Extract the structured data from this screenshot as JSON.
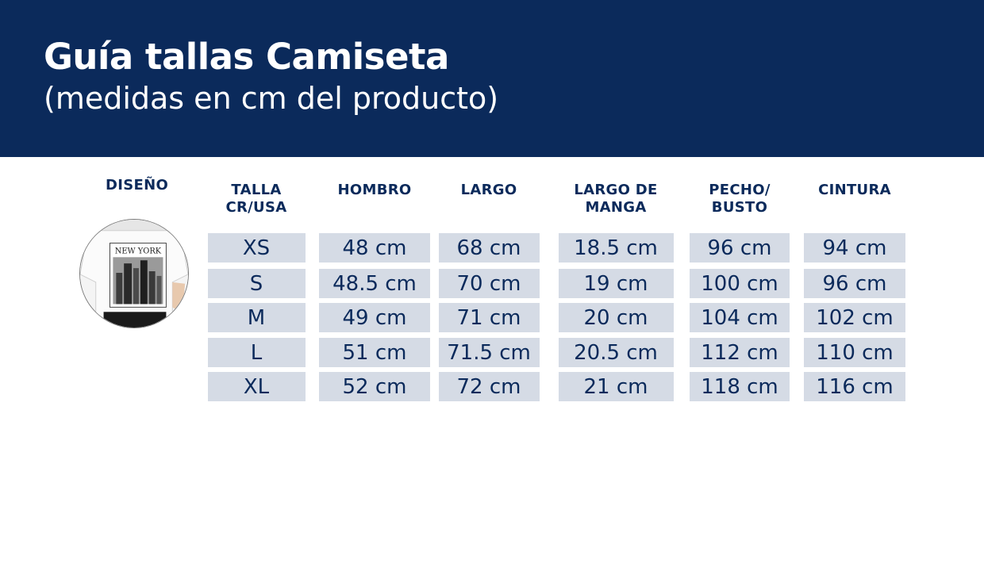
{
  "header": {
    "title": "Guía tallas Camiseta",
    "subtitle": "(medidas en cm del producto)"
  },
  "design": {
    "label": "DISEÑO",
    "shirt_print": "NEW YORK"
  },
  "columns": [
    [
      "TALLA",
      "CR/USA"
    ],
    [
      "HOMBRO"
    ],
    [
      "LARGO"
    ],
    [
      "LARGO DE",
      "MANGA"
    ],
    [
      "PECHO/",
      "BUSTO"
    ],
    [
      "CINTURA"
    ]
  ],
  "rows": [
    [
      "XS",
      "48 cm",
      "68 cm",
      "18.5 cm",
      "96 cm",
      "94 cm"
    ],
    [
      "S",
      "48.5 cm",
      "70 cm",
      "19 cm",
      "100 cm",
      "96 cm"
    ],
    [
      "M",
      "49 cm",
      "71 cm",
      "20 cm",
      "104 cm",
      "102 cm"
    ],
    [
      "L",
      "51 cm",
      "71.5 cm",
      "20.5 cm",
      "112 cm",
      "110 cm"
    ],
    [
      "XL",
      "52 cm",
      "72 cm",
      "21 cm",
      "118 cm",
      "116 cm"
    ]
  ],
  "colors": {
    "banner": "#0b2a5b",
    "cell": "#d5dbe5",
    "text": "#0b2a5b"
  }
}
